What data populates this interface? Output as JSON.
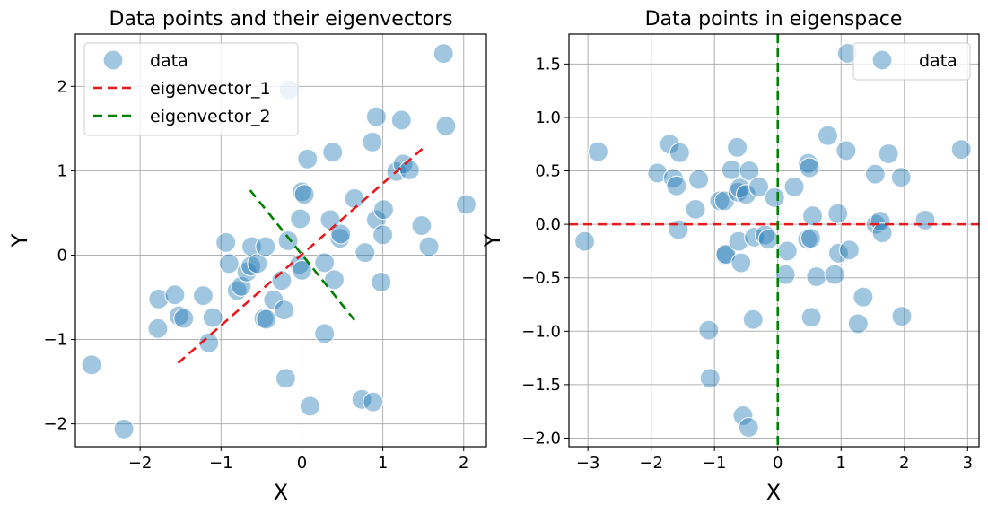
{
  "chart_data": [
    {
      "type": "scatter",
      "title": "Data points and their eigenvectors",
      "xlabel": "X",
      "ylabel": "Y",
      "xlim": [
        -2.8,
        2.28
      ],
      "ylim": [
        -2.27,
        2.62
      ],
      "xticks": [
        -2,
        -1,
        0,
        1,
        2
      ],
      "xtick_labels": [
        "−2",
        "−1",
        "0",
        "1",
        "2"
      ],
      "yticks": [
        -2,
        -1,
        0,
        1,
        2
      ],
      "ytick_labels": [
        "−2",
        "−1",
        "0",
        "1",
        "2"
      ],
      "grid": true,
      "legend_position": "top-left",
      "series": [
        {
          "name": "data",
          "kind": "points",
          "color": "#1f77b4",
          "points": [
            [
              -2.6,
              -1.3
            ],
            [
              -2.2,
              -2.06
            ],
            [
              -1.77,
              -0.52
            ],
            [
              -1.78,
              -0.87
            ],
            [
              -1.57,
              -0.47
            ],
            [
              -1.52,
              -0.72
            ],
            [
              -1.46,
              -0.75
            ],
            [
              -1.22,
              -0.48
            ],
            [
              -1.15,
              -1.04
            ],
            [
              -1.1,
              -0.74
            ],
            [
              -0.94,
              0.15
            ],
            [
              -0.9,
              -0.1
            ],
            [
              -0.8,
              -0.42
            ],
            [
              -0.75,
              -0.37
            ],
            [
              -0.68,
              -0.2
            ],
            [
              -0.63,
              -0.13
            ],
            [
              -0.62,
              0.1
            ],
            [
              -0.55,
              -0.1
            ],
            [
              -0.47,
              -0.75
            ],
            [
              -0.45,
              0.1
            ],
            [
              -0.44,
              -0.76
            ],
            [
              -0.35,
              -0.53
            ],
            [
              -0.25,
              -0.3
            ],
            [
              -0.22,
              -0.65
            ],
            [
              -0.2,
              -1.46
            ],
            [
              -0.17,
              0.17
            ],
            [
              -0.16,
              1.96
            ],
            [
              -0.03,
              -0.11
            ],
            [
              0.0,
              -0.18
            ],
            [
              0.0,
              0.75
            ],
            [
              -0.02,
              0.43
            ],
            [
              0.03,
              0.72
            ],
            [
              0.07,
              1.14
            ],
            [
              0.1,
              -1.79
            ],
            [
              0.28,
              -0.09
            ],
            [
              0.28,
              -0.93
            ],
            [
              0.35,
              0.42
            ],
            [
              0.38,
              1.22
            ],
            [
              0.4,
              -0.29
            ],
            [
              0.47,
              0.2
            ],
            [
              0.48,
              0.25
            ],
            [
              0.65,
              0.67
            ],
            [
              0.74,
              -1.71
            ],
            [
              0.78,
              0.03
            ],
            [
              0.87,
              1.34
            ],
            [
              0.88,
              -1.74
            ],
            [
              0.92,
              1.64
            ],
            [
              0.92,
              0.42
            ],
            [
              0.98,
              -0.32
            ],
            [
              1.0,
              0.24
            ],
            [
              1.01,
              0.54
            ],
            [
              1.17,
              0.99
            ],
            [
              1.23,
              1.6
            ],
            [
              1.25,
              1.08
            ],
            [
              1.33,
              1.01
            ],
            [
              1.48,
              0.35
            ],
            [
              1.57,
              0.1
            ],
            [
              1.75,
              2.39
            ],
            [
              1.78,
              1.53
            ],
            [
              2.03,
              0.6
            ]
          ]
        },
        {
          "name": "eigenvector_1",
          "kind": "line",
          "dash": "dashed",
          "color": "#e41a1c",
          "points": [
            [
              -1.53,
              -1.28
            ],
            [
              1.5,
              1.27
            ]
          ]
        },
        {
          "name": "eigenvector_2",
          "kind": "line",
          "dash": "dashed",
          "color": "#008000",
          "points": [
            [
              -0.64,
              0.77
            ],
            [
              0.65,
              -0.77
            ]
          ]
        }
      ]
    },
    {
      "type": "scatter",
      "title": "Data points in eigenspace",
      "xlabel": "X",
      "ylabel": "Y",
      "xlim": [
        -3.3,
        3.18
      ],
      "ylim": [
        -2.08,
        1.78
      ],
      "xticks": [
        -3,
        -2,
        -1,
        0,
        1,
        2,
        3
      ],
      "xtick_labels": [
        "−3",
        "−2",
        "−1",
        "0",
        "1",
        "2",
        "3"
      ],
      "yticks": [
        -2.0,
        -1.5,
        -1.0,
        -0.5,
        0.0,
        0.5,
        1.0,
        1.5
      ],
      "ytick_labels": [
        "−2.0",
        "−1.5",
        "−1.0",
        "−0.5",
        "0.0",
        "0.5",
        "1.0",
        "1.5"
      ],
      "grid": true,
      "legend_position": "top-right",
      "series": [
        {
          "name": "data",
          "kind": "points",
          "color": "#1f77b4",
          "points": [
            [
              -3.05,
              -0.16
            ],
            [
              -2.84,
              0.68
            ],
            [
              -1.9,
              0.48
            ],
            [
              -1.71,
              0.75
            ],
            [
              -1.65,
              0.43
            ],
            [
              -1.6,
              0.36
            ],
            [
              -1.55,
              0.67
            ],
            [
              -1.57,
              -0.05
            ],
            [
              -1.3,
              0.14
            ],
            [
              -1.25,
              0.42
            ],
            [
              -1.09,
              -0.99
            ],
            [
              -1.07,
              -1.44
            ],
            [
              -0.92,
              0.22
            ],
            [
              -0.84,
              0.22
            ],
            [
              -0.83,
              -0.29
            ],
            [
              -0.82,
              -0.28
            ],
            [
              -0.73,
              0.51
            ],
            [
              -0.64,
              0.72
            ],
            [
              -0.63,
              0.3
            ],
            [
              -0.6,
              0.34
            ],
            [
              -0.62,
              -0.16
            ],
            [
              -0.58,
              -0.36
            ],
            [
              -0.55,
              -1.79
            ],
            [
              -0.5,
              0.28
            ],
            [
              -0.45,
              0.5
            ],
            [
              -0.46,
              -1.9
            ],
            [
              -0.39,
              -0.89
            ],
            [
              -0.37,
              -0.12
            ],
            [
              -0.3,
              0.35
            ],
            [
              -0.2,
              -0.1
            ],
            [
              -0.15,
              -0.14
            ],
            [
              -0.05,
              0.25
            ],
            [
              0.12,
              -0.47
            ],
            [
              0.15,
              -0.25
            ],
            [
              0.26,
              0.35
            ],
            [
              0.47,
              -0.14
            ],
            [
              0.48,
              0.57
            ],
            [
              0.5,
              0.53
            ],
            [
              0.52,
              -0.13
            ],
            [
              0.53,
              -0.87
            ],
            [
              0.55,
              0.08
            ],
            [
              0.61,
              -0.49
            ],
            [
              0.79,
              0.83
            ],
            [
              0.9,
              -0.47
            ],
            [
              0.95,
              0.1
            ],
            [
              0.96,
              -0.27
            ],
            [
              1.08,
              0.69
            ],
            [
              1.1,
              1.6
            ],
            [
              1.13,
              -0.24
            ],
            [
              1.27,
              -0.93
            ],
            [
              1.35,
              -0.68
            ],
            [
              1.54,
              0.47
            ],
            [
              1.55,
              0.0
            ],
            [
              1.62,
              0.03
            ],
            [
              1.65,
              -0.08
            ],
            [
              1.75,
              0.66
            ],
            [
              1.95,
              0.44
            ],
            [
              1.96,
              -0.86
            ],
            [
              2.33,
              0.04
            ],
            [
              2.9,
              0.7
            ]
          ]
        },
        {
          "name": "",
          "kind": "hline",
          "dash": "dashed",
          "color": "#e41a1c",
          "y": 0
        },
        {
          "name": "",
          "kind": "vline",
          "dash": "dashed",
          "color": "#008000",
          "x": 0
        }
      ]
    }
  ]
}
